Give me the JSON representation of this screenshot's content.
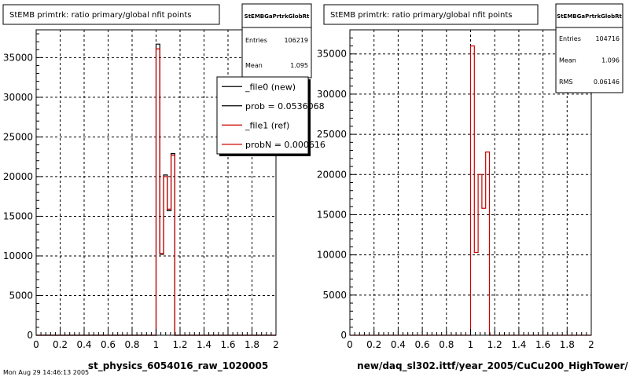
{
  "colors": {
    "new": "#000000",
    "ref": "#cc0000",
    "grid": "#000000",
    "frame": "#000000"
  },
  "footer_text": "Mon Aug 29 14:46:13 2005",
  "chart_data": [
    {
      "type": "bar",
      "title": "StEMB primtrk: ratio primary/global nfit points",
      "xlabel": "st_physics_6054016_raw_1020005",
      "xlim": [
        0,
        2
      ],
      "ylim": [
        0,
        38500
      ],
      "x_ticks": [
        "0",
        "0.2",
        "0.4",
        "0.6",
        "0.8",
        "1",
        "1.2",
        "1.4",
        "1.6",
        "1.8",
        "2"
      ],
      "y_ticks": [
        "0",
        "5000",
        "10000",
        "15000",
        "20000",
        "25000",
        "30000",
        "35000"
      ],
      "grid": true,
      "stats": {
        "name": "StEMBGaPrtrkGlobRt",
        "rows": [
          {
            "label": "Entries",
            "value": "106219"
          },
          {
            "label": "Mean",
            "value": "1.095"
          }
        ]
      },
      "legend": {
        "placement": "top-right",
        "entries": [
          {
            "label": "_file0 (new)",
            "color": "#000000"
          },
          {
            "label": "prob = 0.0536068",
            "color": "#000000"
          },
          {
            "label": "_file1 (ref)",
            "color": "#cc0000"
          },
          {
            "label": "probN = 0.000616",
            "color": "#cc0000"
          }
        ]
      },
      "bins": {
        "xmin": 0,
        "xmax": 2,
        "n": 64
      },
      "series": [
        {
          "name": "_file0 (new)",
          "color": "#000000",
          "points": [
            {
              "x": 1.015625,
              "y": 36700
            },
            {
              "x": 1.046875,
              "y": 10200
            },
            {
              "x": 1.078125,
              "y": 20200
            },
            {
              "x": 1.109375,
              "y": 15700
            },
            {
              "x": 1.140625,
              "y": 22900
            },
            {
              "x": 1.171875,
              "y": 0
            }
          ]
        },
        {
          "name": "_file1 (ref)",
          "color": "#cc0000",
          "points": [
            {
              "x": 1.015625,
              "y": 36100
            },
            {
              "x": 1.046875,
              "y": 10300
            },
            {
              "x": 1.078125,
              "y": 20000
            },
            {
              "x": 1.109375,
              "y": 15900
            },
            {
              "x": 1.140625,
              "y": 22700
            },
            {
              "x": 1.171875,
              "y": 0
            }
          ]
        }
      ]
    },
    {
      "type": "bar",
      "title": "StEMB primtrk: ratio primary/global nfit points",
      "xlabel": "new/daq_sl302.ittf/year_2005/CuCu200_HighTower/",
      "xlim": [
        0,
        2
      ],
      "ylim": [
        0,
        38000
      ],
      "x_ticks": [
        "0",
        "0.2",
        "0.4",
        "0.6",
        "0.8",
        "1",
        "1.2",
        "1.4",
        "1.6",
        "1.8",
        "2"
      ],
      "y_ticks": [
        "0",
        "5000",
        "10000",
        "15000",
        "20000",
        "25000",
        "30000",
        "35000"
      ],
      "grid": true,
      "stats": {
        "name": "StEMBGaPrtrkGlobRt",
        "rows": [
          {
            "label": "Entries",
            "value": "104716"
          },
          {
            "label": "Mean",
            "value": "1.096"
          },
          {
            "label": "RMS",
            "value": "0.06146"
          }
        ]
      },
      "bins": {
        "xmin": 0,
        "xmax": 2,
        "n": 64
      },
      "series": [
        {
          "name": "",
          "color": "#cc0000",
          "points": [
            {
              "x": 1.015625,
              "y": 36000
            },
            {
              "x": 1.046875,
              "y": 10300
            },
            {
              "x": 1.078125,
              "y": 20000
            },
            {
              "x": 1.109375,
              "y": 15800
            },
            {
              "x": 1.140625,
              "y": 22800
            },
            {
              "x": 1.171875,
              "y": 0
            }
          ]
        }
      ]
    }
  ]
}
